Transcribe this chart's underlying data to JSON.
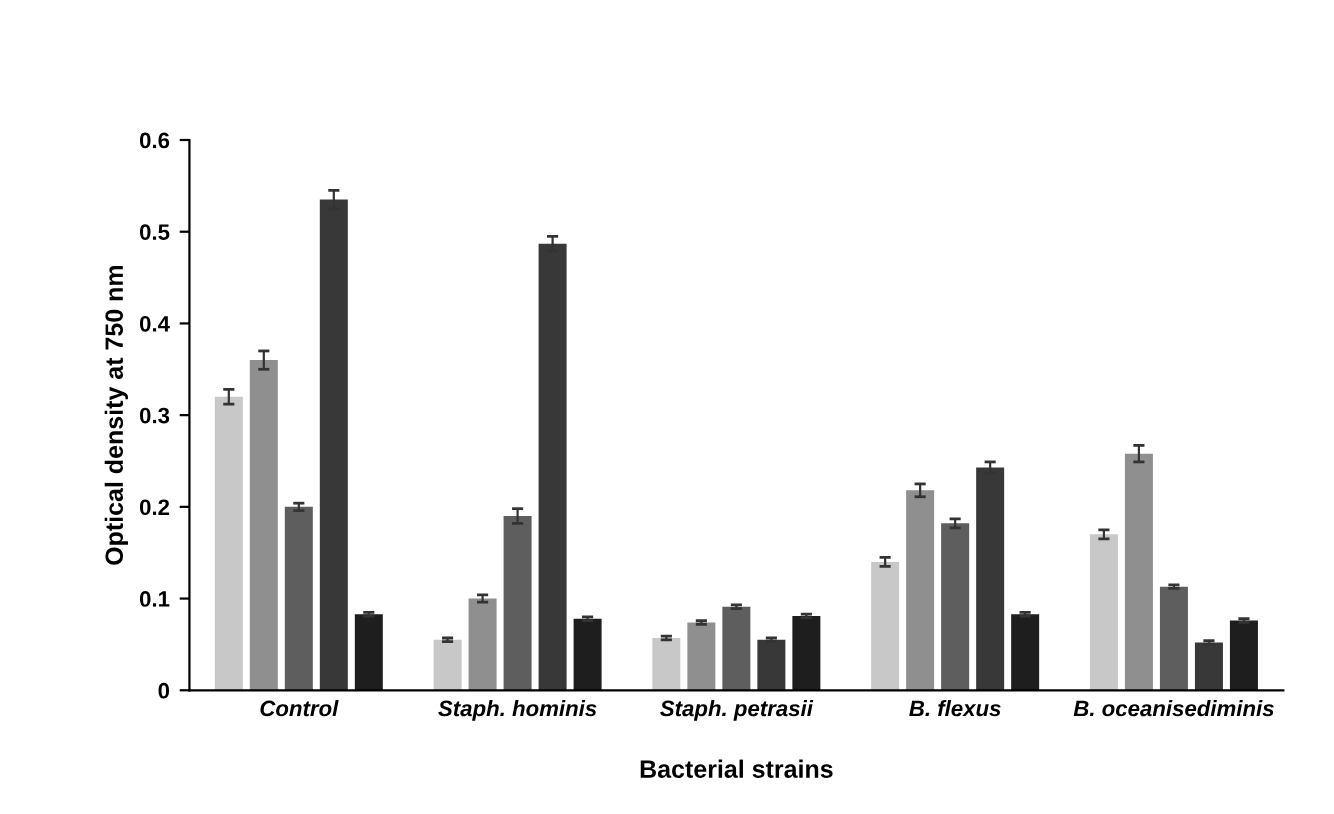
{
  "chart_data": {
    "type": "bar",
    "xlabel": "Bacterial strains",
    "ylabel": "Optical density at 750 nm",
    "categories": [
      "Control",
      "Staph. hominis",
      "Staph. petrasii",
      "B. flexus",
      "B. oceanisediminis"
    ],
    "series": [
      {
        "color": "#c8c8c8",
        "values": [
          0.32,
          0.055,
          0.057,
          0.14,
          0.17
        ],
        "errors": [
          0.008,
          0.002,
          0.002,
          0.005,
          0.005
        ]
      },
      {
        "color": "#8f8f8f",
        "values": [
          0.36,
          0.1,
          0.074,
          0.218,
          0.258
        ],
        "errors": [
          0.01,
          0.004,
          0.002,
          0.007,
          0.009
        ]
      },
      {
        "color": "#5e5e5e",
        "values": [
          0.2,
          0.19,
          0.091,
          0.182,
          0.113
        ],
        "errors": [
          0.004,
          0.008,
          0.002,
          0.005,
          0.002
        ]
      },
      {
        "color": "#383838",
        "values": [
          0.535,
          0.487,
          0.055,
          0.243,
          0.052
        ],
        "errors": [
          0.01,
          0.008,
          0.002,
          0.006,
          0.002
        ]
      },
      {
        "color": "#1e1e1e",
        "values": [
          0.083,
          0.078,
          0.081,
          0.083,
          0.076
        ],
        "errors": [
          0.002,
          0.002,
          0.002,
          0.002,
          0.002
        ]
      }
    ],
    "ylim": [
      0,
      0.6
    ],
    "yticks": [
      {
        "value": 0,
        "label": "0"
      },
      0.1,
      0.2,
      0.3,
      0.4,
      0.5,
      0.6
    ],
    "grid": false,
    "legend": false
  }
}
